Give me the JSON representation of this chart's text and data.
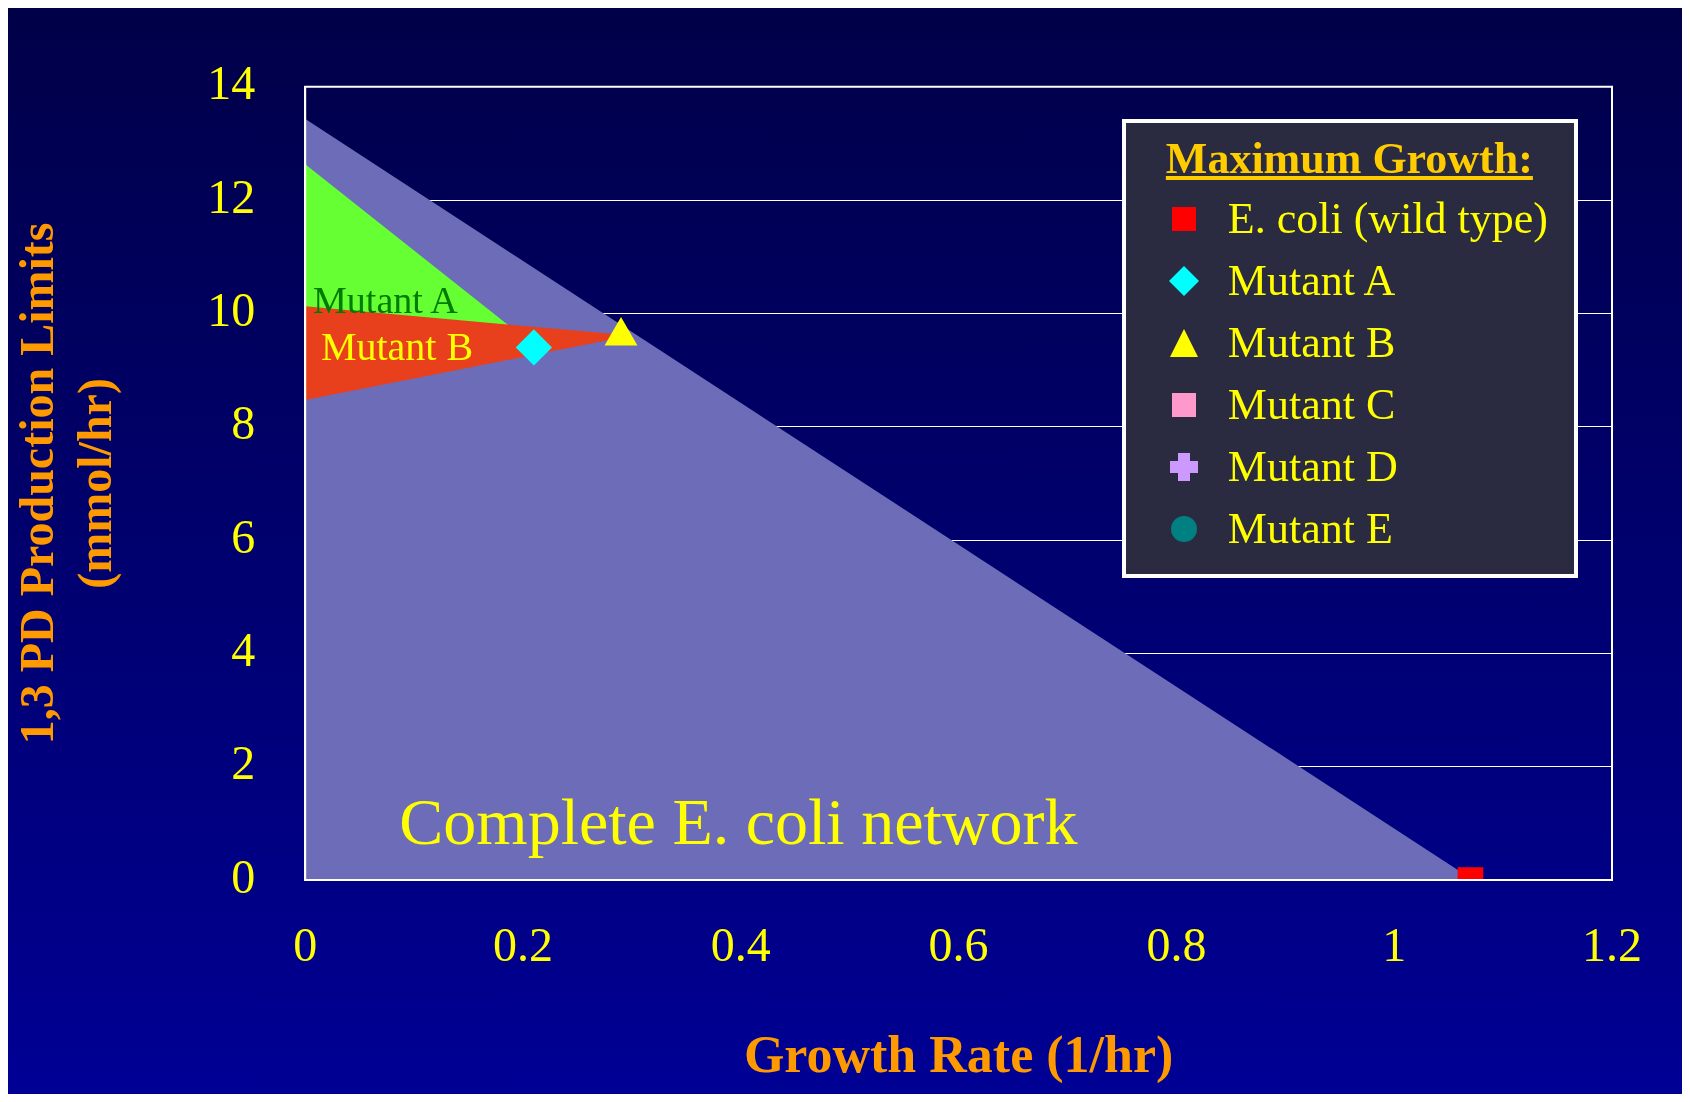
{
  "chart_data": {
    "type": "scatter",
    "xlabel": "Growth Rate (1/hr)",
    "ylabel": "1,3 PD Production Limits\n(mmol/hr)",
    "legend_title": "Maximum Growth:",
    "xlim": [
      0,
      1.2
    ],
    "xticks": [
      0,
      0.2,
      0.4,
      0.6,
      0.8,
      1,
      1.2
    ],
    "ylim": [
      0,
      14
    ],
    "yticks": [
      0,
      2,
      4,
      6,
      8,
      10,
      12,
      14
    ],
    "grid": "y",
    "legend": "top right",
    "series": [
      {
        "type": "area",
        "color": "#6c6cb8",
        "x": [
          0,
          0,
          1.07
        ],
        "values": [
          0,
          13.4,
          0
        ]
      },
      {
        "type": "area",
        "color": "#66ff33",
        "x": [
          0,
          0.21,
          0
        ],
        "values": [
          12.6,
          9.4,
          9.4
        ]
      },
      {
        "type": "area",
        "color": "#e8401c",
        "x": [
          0,
          0.29,
          0
        ],
        "values": [
          10.1,
          9.6,
          8.5
        ]
      },
      {
        "name": "E. coli (wild type)",
        "color": "#ff0000",
        "marker": "square",
        "x": [
          1.07
        ],
        "values": [
          0
        ]
      },
      {
        "name": "Mutant A",
        "color": "#00ffff",
        "marker": "diamond",
        "x": [
          0.21
        ],
        "values": [
          9.4
        ]
      },
      {
        "name": "Mutant B",
        "color": "#ffff00",
        "marker": "triangle",
        "x": [
          0.29
        ],
        "values": [
          9.6
        ]
      },
      {
        "name": "Mutant C",
        "color": "#ff99cc",
        "marker": "square"
      },
      {
        "name": "Mutant D",
        "color": "#cc99ff",
        "marker": "cross"
      },
      {
        "name": "Mutant E",
        "color": "#008080",
        "marker": "circle"
      }
    ],
    "annotations": [
      "Mutant A",
      "Mutant B",
      "Complete E. coli network"
    ]
  }
}
